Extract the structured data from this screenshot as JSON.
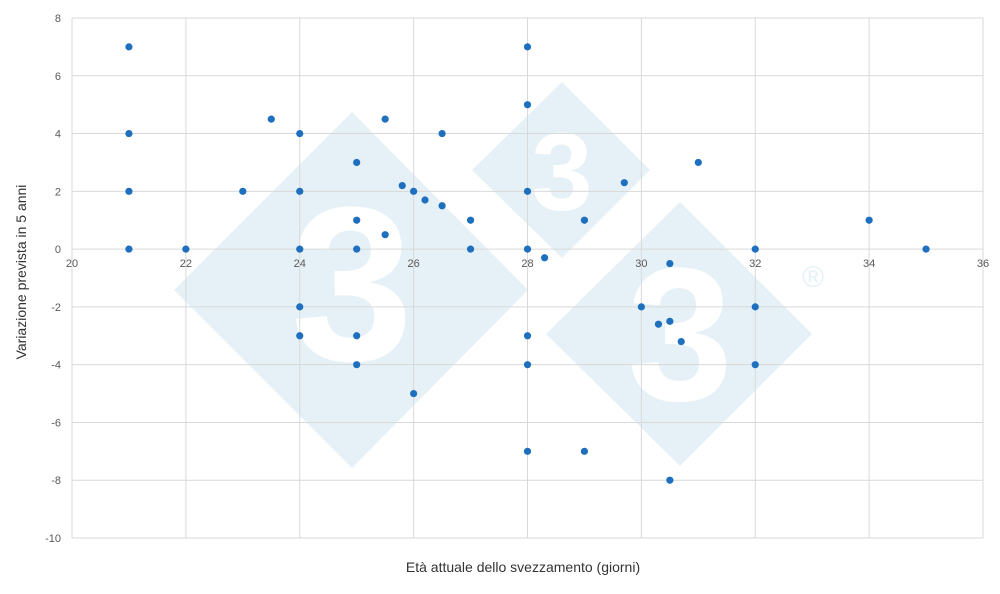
{
  "chart_data": {
    "type": "scatter",
    "xlabel": "Età attuale dello svezzamento (giorni)",
    "ylabel": "Variazione prevista in 5 anni",
    "xlim": [
      20,
      36
    ],
    "ylim": [
      -10,
      8
    ],
    "xticks": [
      20,
      22,
      24,
      26,
      28,
      30,
      32,
      34,
      36
    ],
    "yticks": [
      -10,
      -8,
      -6,
      -4,
      -2,
      0,
      2,
      4,
      6,
      8
    ],
    "grid": true,
    "point_color": "#1f6fbf",
    "grid_color": "#d9d9d9",
    "points": [
      {
        "x": 21,
        "y": 7
      },
      {
        "x": 21,
        "y": 4
      },
      {
        "x": 21,
        "y": 2
      },
      {
        "x": 21,
        "y": 0
      },
      {
        "x": 22,
        "y": 0
      },
      {
        "x": 23,
        "y": 2
      },
      {
        "x": 23.5,
        "y": 4.5
      },
      {
        "x": 24,
        "y": 4
      },
      {
        "x": 24,
        "y": 2
      },
      {
        "x": 24,
        "y": 0
      },
      {
        "x": 24,
        "y": -2
      },
      {
        "x": 24,
        "y": -3
      },
      {
        "x": 25,
        "y": 3
      },
      {
        "x": 25,
        "y": 1
      },
      {
        "x": 25,
        "y": 0
      },
      {
        "x": 25,
        "y": -3
      },
      {
        "x": 25,
        "y": -4
      },
      {
        "x": 25.5,
        "y": 4.5
      },
      {
        "x": 25.5,
        "y": 0.5
      },
      {
        "x": 25.8,
        "y": 2.2
      },
      {
        "x": 26,
        "y": 2
      },
      {
        "x": 26,
        "y": -5
      },
      {
        "x": 26.2,
        "y": 1.7
      },
      {
        "x": 26.5,
        "y": 4
      },
      {
        "x": 26.5,
        "y": 1.5
      },
      {
        "x": 27,
        "y": 1
      },
      {
        "x": 27,
        "y": 0
      },
      {
        "x": 28,
        "y": 7
      },
      {
        "x": 28,
        "y": 5
      },
      {
        "x": 28,
        "y": 2
      },
      {
        "x": 28,
        "y": 0
      },
      {
        "x": 28,
        "y": -3
      },
      {
        "x": 28,
        "y": -4
      },
      {
        "x": 28,
        "y": -7
      },
      {
        "x": 28.3,
        "y": -0.3
      },
      {
        "x": 29,
        "y": 1
      },
      {
        "x": 29,
        "y": -7
      },
      {
        "x": 29.7,
        "y": 2.3
      },
      {
        "x": 30,
        "y": -2
      },
      {
        "x": 30.3,
        "y": -2.6
      },
      {
        "x": 30.5,
        "y": -0.5
      },
      {
        "x": 30.5,
        "y": -2.5
      },
      {
        "x": 30.5,
        "y": -8
      },
      {
        "x": 30.7,
        "y": -3.2
      },
      {
        "x": 31,
        "y": 3
      },
      {
        "x": 32,
        "y": 0
      },
      {
        "x": 32,
        "y": -2
      },
      {
        "x": 32,
        "y": -4
      },
      {
        "x": 34,
        "y": 1
      },
      {
        "x": 35,
        "y": 0
      }
    ]
  },
  "watermark": {
    "glyph": "3",
    "registered": "®",
    "color": "#e6f1f7"
  }
}
